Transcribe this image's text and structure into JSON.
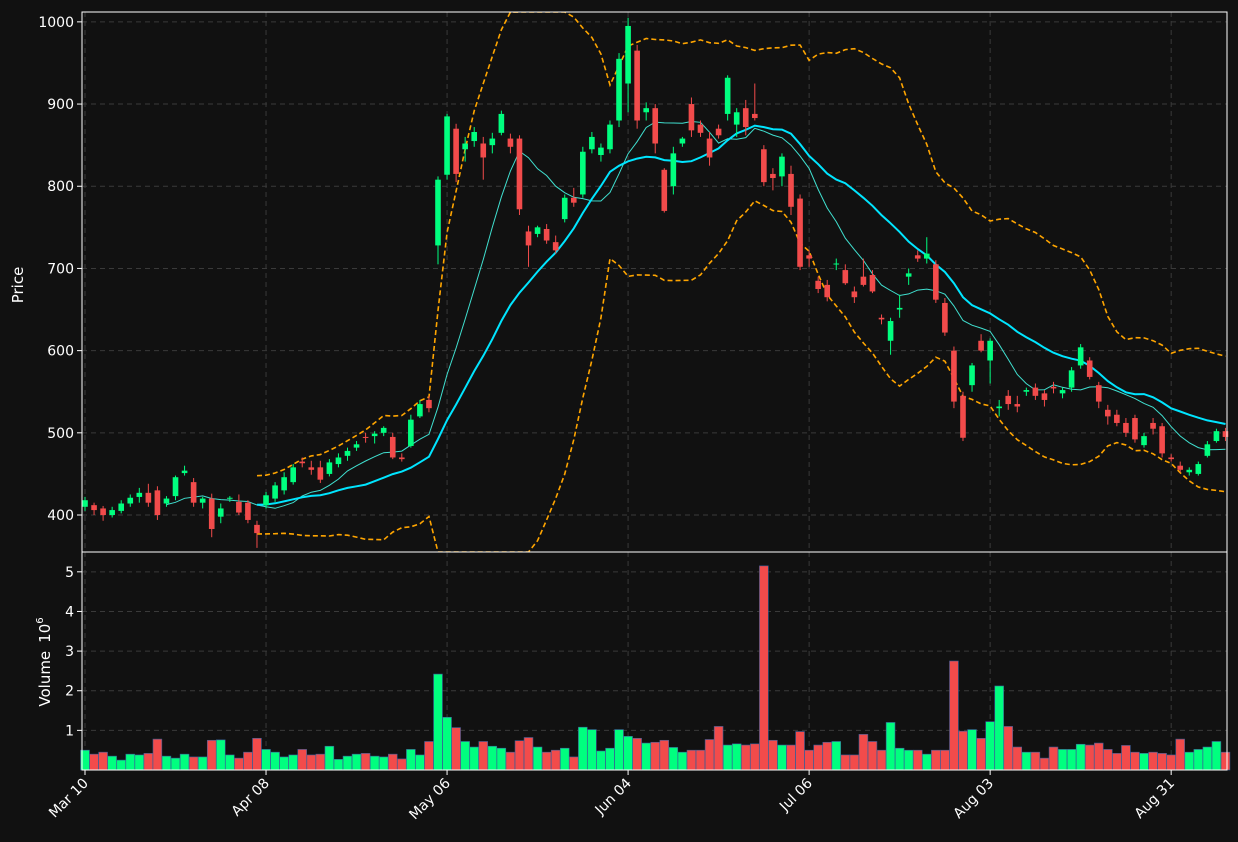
{
  "colors": {
    "background": "#111111",
    "up": "#00ff7f",
    "down": "#f24b4b",
    "ma_fast": "#40e0d0",
    "ma_slow": "#00e5ff",
    "bollinger": "#ffa500",
    "grid": "#3a3a3a",
    "axis": "#ffffff"
  },
  "chart_data": {
    "type": "candlestick",
    "title": "",
    "price_panel": {
      "ylabel": "Price",
      "ylim": [
        355,
        1012
      ],
      "yticks": [
        400,
        500,
        600,
        700,
        800,
        900,
        1000
      ],
      "grid": true
    },
    "volume_panel": {
      "ylabel": "Volume",
      "yscale_label": "10^6",
      "ylim": [
        0,
        5.5
      ],
      "yticks": [
        1,
        2,
        3,
        4,
        5
      ],
      "grid": true
    },
    "xtick_labels": [
      {
        "label": "Mar 10",
        "i": 0
      },
      {
        "label": "Apr 08",
        "i": 20
      },
      {
        "label": "May 06",
        "i": 40
      },
      {
        "label": "Jun 04",
        "i": 60
      },
      {
        "label": "Jul 06",
        "i": 80
      },
      {
        "label": "Aug 03",
        "i": 100
      },
      {
        "label": "Aug 31",
        "i": 120
      }
    ],
    "ohlcv": [
      [
        410,
        422,
        405,
        418,
        0.5
      ],
      [
        412,
        415,
        400,
        406,
        0.4
      ],
      [
        408,
        411,
        393,
        400,
        0.45
      ],
      [
        400,
        410,
        397,
        406,
        0.35
      ],
      [
        405,
        418,
        402,
        414,
        0.25
      ],
      [
        414,
        425,
        410,
        421,
        0.4
      ],
      [
        422,
        433,
        415,
        427,
        0.38
      ],
      [
        427,
        438,
        410,
        415,
        0.42
      ],
      [
        430,
        435,
        394,
        400,
        0.78
      ],
      [
        414,
        423,
        410,
        420,
        0.35
      ],
      [
        423,
        448,
        418,
        446,
        0.3
      ],
      [
        451,
        460,
        448,
        454,
        0.4
      ],
      [
        440,
        445,
        410,
        415,
        0.33
      ],
      [
        415,
        422,
        408,
        420,
        0.33
      ],
      [
        420,
        426,
        373,
        383,
        0.75
      ],
      [
        398,
        414,
        390,
        408,
        0.76
      ],
      [
        420,
        423,
        416,
        421,
        0.38
      ],
      [
        416,
        425,
        400,
        403,
        0.3
      ],
      [
        415,
        418,
        390,
        394,
        0.45
      ],
      [
        388,
        393,
        360,
        378,
        0.8
      ],
      [
        412,
        428,
        408,
        424,
        0.52
      ],
      [
        420,
        440,
        416,
        436,
        0.45
      ],
      [
        430,
        452,
        425,
        446,
        0.33
      ],
      [
        440,
        462,
        437,
        458,
        0.38
      ],
      [
        465,
        470,
        458,
        463,
        0.52
      ],
      [
        458,
        466,
        449,
        455,
        0.38
      ],
      [
        458,
        466,
        439,
        443,
        0.4
      ],
      [
        450,
        468,
        447,
        464,
        0.6
      ],
      [
        462,
        475,
        458,
        470,
        0.27
      ],
      [
        472,
        482,
        466,
        478,
        0.35
      ],
      [
        482,
        490,
        478,
        486,
        0.4
      ],
      [
        495,
        500,
        488,
        494,
        0.42
      ],
      [
        496,
        502,
        487,
        499,
        0.35
      ],
      [
        500,
        508,
        496,
        506,
        0.33
      ],
      [
        495,
        500,
        468,
        470,
        0.4
      ],
      [
        470,
        475,
        465,
        468,
        0.28
      ],
      [
        484,
        522,
        482,
        516,
        0.52
      ],
      [
        520,
        540,
        518,
        535,
        0.38
      ],
      [
        540,
        545,
        525,
        530,
        0.72
      ],
      [
        728,
        812,
        705,
        808,
        2.42
      ],
      [
        814,
        888,
        808,
        885,
        1.33
      ],
      [
        870,
        876,
        805,
        815,
        1.07
      ],
      [
        845,
        860,
        830,
        852,
        0.72
      ],
      [
        855,
        872,
        848,
        866,
        0.58
      ],
      [
        852,
        860,
        808,
        835,
        0.72
      ],
      [
        850,
        865,
        840,
        858,
        0.6
      ],
      [
        865,
        892,
        862,
        888,
        0.55
      ],
      [
        858,
        864,
        840,
        848,
        0.45
      ],
      [
        858,
        862,
        765,
        772,
        0.74
      ],
      [
        745,
        752,
        702,
        728,
        0.82
      ],
      [
        742,
        752,
        738,
        750,
        0.58
      ],
      [
        748,
        754,
        730,
        734,
        0.45
      ],
      [
        732,
        740,
        718,
        722,
        0.5
      ],
      [
        760,
        790,
        756,
        786,
        0.55
      ],
      [
        786,
        798,
        775,
        780,
        0.33
      ],
      [
        790,
        848,
        786,
        842,
        1.08
      ],
      [
        845,
        866,
        840,
        860,
        1.02
      ],
      [
        838,
        852,
        830,
        847,
        0.48
      ],
      [
        845,
        880,
        840,
        875,
        0.55
      ],
      [
        880,
        962,
        872,
        955,
        1.02
      ],
      [
        925,
        1005,
        890,
        995,
        0.85
      ],
      [
        965,
        972,
        870,
        880,
        0.8
      ],
      [
        890,
        902,
        880,
        895,
        0.68
      ],
      [
        895,
        900,
        840,
        852,
        0.7
      ],
      [
        820,
        822,
        768,
        770,
        0.75
      ],
      [
        800,
        848,
        790,
        840,
        0.57
      ],
      [
        852,
        860,
        848,
        858,
        0.45
      ],
      [
        900,
        908,
        860,
        868,
        0.5
      ],
      [
        875,
        880,
        860,
        865,
        0.5
      ],
      [
        858,
        866,
        825,
        835,
        0.77
      ],
      [
        870,
        875,
        858,
        862,
        1.1
      ],
      [
        888,
        935,
        880,
        932,
        0.63
      ],
      [
        875,
        895,
        860,
        890,
        0.66
      ],
      [
        895,
        905,
        862,
        872,
        0.63
      ],
      [
        888,
        925,
        880,
        883,
        0.66
      ],
      [
        845,
        850,
        800,
        805,
        5.15
      ],
      [
        815,
        822,
        795,
        810,
        0.75
      ],
      [
        812,
        840,
        800,
        836,
        0.63
      ],
      [
        815,
        825,
        765,
        775,
        0.63
      ],
      [
        785,
        790,
        698,
        702,
        0.97
      ],
      [
        716,
        722,
        702,
        712,
        0.5
      ],
      [
        685,
        690,
        670,
        675,
        0.63
      ],
      [
        680,
        686,
        660,
        665,
        0.7
      ],
      [
        705,
        712,
        698,
        706,
        0.72
      ],
      [
        698,
        705,
        680,
        682,
        0.38
      ],
      [
        672,
        678,
        658,
        665,
        0.38
      ],
      [
        690,
        712,
        678,
        680,
        0.9
      ],
      [
        692,
        698,
        670,
        672,
        0.72
      ],
      [
        640,
        644,
        632,
        638,
        0.5
      ],
      [
        612,
        640,
        595,
        636,
        1.2
      ],
      [
        650,
        668,
        640,
        652,
        0.55
      ],
      [
        690,
        700,
        680,
        694,
        0.5
      ],
      [
        716,
        722,
        708,
        712,
        0.5
      ],
      [
        712,
        738,
        706,
        718,
        0.4
      ],
      [
        705,
        710,
        658,
        662,
        0.5
      ],
      [
        658,
        664,
        618,
        622,
        0.5
      ],
      [
        600,
        605,
        530,
        538,
        2.75
      ],
      [
        545,
        550,
        490,
        494,
        0.98
      ],
      [
        558,
        585,
        550,
        582,
        1.02
      ],
      [
        612,
        620,
        598,
        600,
        0.8
      ],
      [
        588,
        615,
        560,
        612,
        1.22
      ],
      [
        530,
        540,
        520,
        532,
        2.12
      ],
      [
        545,
        552,
        528,
        535,
        1.1
      ],
      [
        535,
        545,
        525,
        532,
        0.58
      ],
      [
        550,
        555,
        545,
        552,
        0.45
      ],
      [
        555,
        560,
        540,
        545,
        0.45
      ],
      [
        548,
        552,
        532,
        540,
        0.3
      ],
      [
        556,
        562,
        548,
        554,
        0.58
      ],
      [
        548,
        555,
        542,
        552,
        0.52
      ],
      [
        555,
        580,
        550,
        576,
        0.52
      ],
      [
        582,
        608,
        578,
        604,
        0.65
      ],
      [
        588,
        592,
        565,
        568,
        0.63
      ],
      [
        558,
        562,
        530,
        538,
        0.68
      ],
      [
        528,
        534,
        510,
        520,
        0.52
      ],
      [
        522,
        528,
        508,
        512,
        0.42
      ],
      [
        512,
        518,
        495,
        500,
        0.62
      ],
      [
        518,
        522,
        488,
        492,
        0.45
      ],
      [
        485,
        500,
        482,
        496,
        0.42
      ],
      [
        512,
        518,
        498,
        505,
        0.45
      ],
      [
        508,
        512,
        470,
        475,
        0.42
      ],
      [
        470,
        474,
        465,
        468,
        0.38
      ],
      [
        460,
        465,
        452,
        455,
        0.78
      ],
      [
        452,
        458,
        448,
        455,
        0.45
      ],
      [
        450,
        465,
        448,
        462,
        0.52
      ],
      [
        472,
        490,
        470,
        486,
        0.58
      ],
      [
        490,
        505,
        488,
        502,
        0.72
      ],
      [
        502,
        506,
        490,
        495,
        0.45
      ]
    ]
  }
}
